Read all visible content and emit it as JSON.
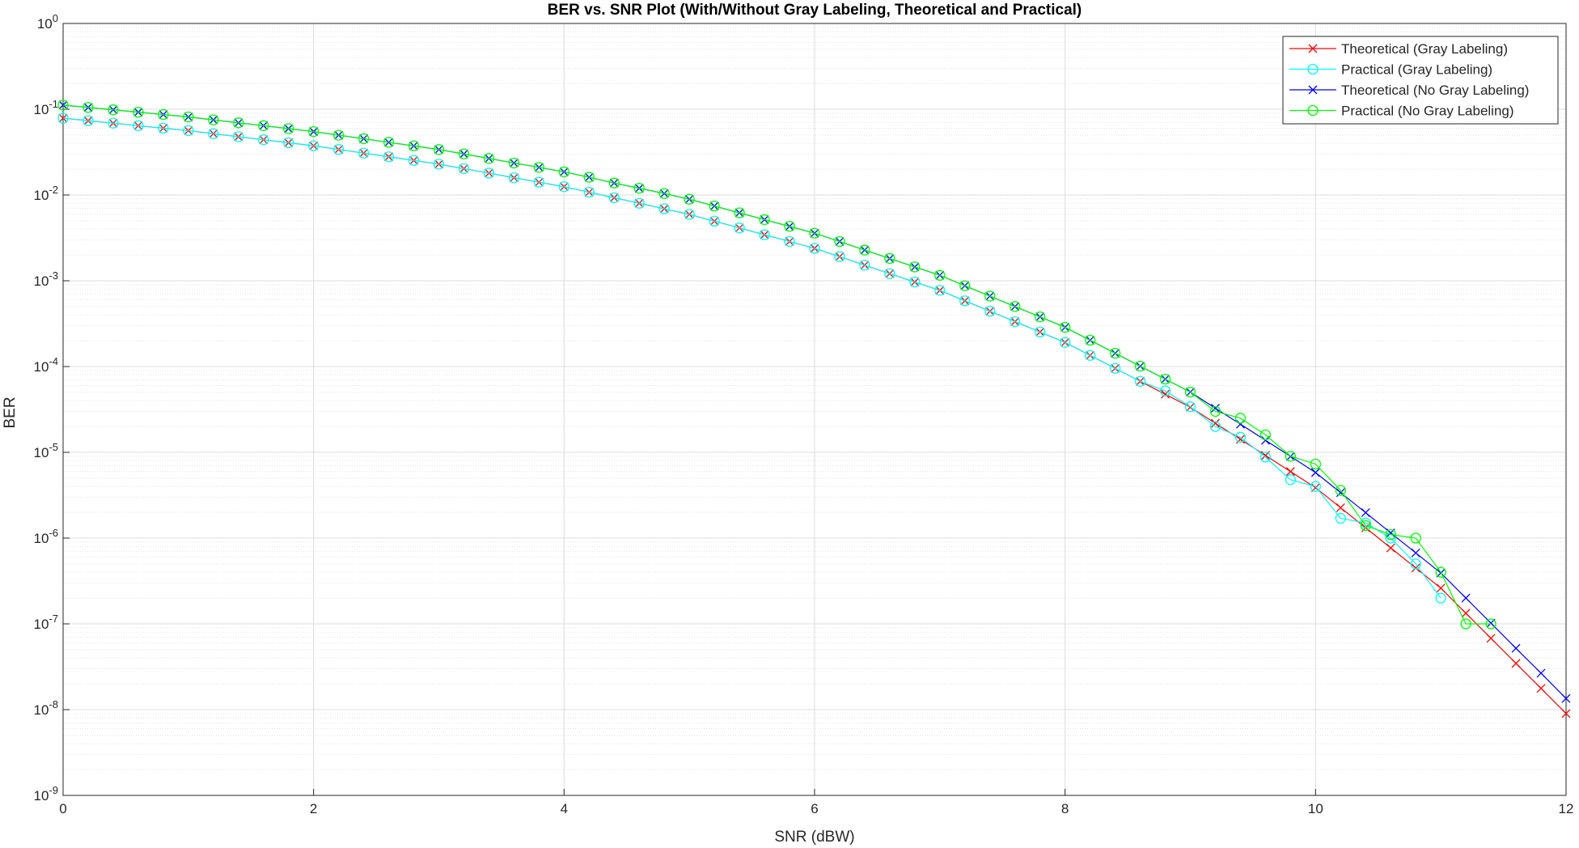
{
  "chart_data": {
    "type": "line",
    "title": "BER vs. SNR Plot (With/Without Gray Labeling, Theoretical and Practical)",
    "xlabel": "SNR (dBW)",
    "ylabel": "BER",
    "yscale": "log",
    "grid": true,
    "minor_grid": true,
    "legend": "upper right",
    "xlim": [
      0,
      12
    ],
    "xticks": [
      0,
      2,
      4,
      6,
      8,
      10,
      12
    ],
    "ylim": [
      1e-09,
      1
    ],
    "yticks": [
      {
        "value": 1e-09,
        "label": "10",
        "exponent": "-9"
      },
      {
        "value": 1e-08,
        "label": "10",
        "exponent": "-8"
      },
      {
        "value": 1e-07,
        "label": "10",
        "exponent": "-7"
      },
      {
        "value": 1e-06,
        "label": "10",
        "exponent": "-6"
      },
      {
        "value": 1e-05,
        "label": "10",
        "exponent": "-5"
      },
      {
        "value": 0.0001,
        "label": "10",
        "exponent": "-4"
      },
      {
        "value": 0.001,
        "label": "10",
        "exponent": "-3"
      },
      {
        "value": 0.01,
        "label": "10",
        "exponent": "-2"
      },
      {
        "value": 0.1,
        "label": "10",
        "exponent": "-1"
      },
      {
        "value": 1,
        "label": "10",
        "exponent": "0"
      }
    ],
    "x": [
      0,
      0.2,
      0.4,
      0.6,
      0.8,
      1,
      1.2,
      1.4,
      1.6,
      1.8,
      2,
      2.2,
      2.4,
      2.6,
      2.8,
      3,
      3.2,
      3.4,
      3.6,
      3.8,
      4,
      4.2,
      4.4,
      4.6,
      4.8,
      5,
      5.2,
      5.4,
      5.6,
      5.8,
      6,
      6.2,
      6.4,
      6.6,
      6.8,
      7,
      7.2,
      7.4,
      7.6,
      7.8,
      8,
      8.2,
      8.4,
      8.6,
      8.8,
      9,
      9.2,
      9.4,
      9.6,
      9.8,
      10,
      10.2,
      10.4,
      10.6,
      10.8,
      11,
      11.2,
      11.4,
      11.6,
      11.8,
      12
    ],
    "series": [
      {
        "name": "Theoretical (Gray Labeling)",
        "color": "#ff0000",
        "marker": "x",
        "values": [
          0.0787,
          0.0736,
          0.0688,
          0.0643,
          0.0602,
          0.0563,
          0.0519,
          0.0478,
          0.0441,
          0.0407,
          0.0375,
          0.034,
          0.0308,
          0.0279,
          0.0253,
          0.0229,
          0.0203,
          0.018,
          0.0159,
          0.0141,
          0.0125,
          0.01078,
          0.00929,
          0.00801,
          0.00691,
          0.00595,
          0.00496,
          0.00413,
          0.00344,
          0.00287,
          0.00239,
          0.00191,
          0.00152,
          0.00121,
          0.000968,
          0.000773,
          0.000584,
          0.000442,
          0.000334,
          0.000253,
          0.000191,
          0.000135,
          9.53e-05,
          6.73e-05,
          4.76e-05,
          3.36e-05,
          2.18e-05,
          1.42e-05,
          9.19e-06,
          5.97e-06,
          3.87e-06,
          2.26e-06,
          1.32e-06,
          7.68e-07,
          4.48e-07,
          2.61e-07,
          1.33e-07,
          6.79e-08,
          3.46e-08,
          1.77e-08,
          9.01e-09
        ]
      },
      {
        "name": "Practical (Gray Labeling)",
        "color": "#00ffff",
        "marker": "o",
        "values": [
          0.0787,
          0.0736,
          0.0688,
          0.0643,
          0.0602,
          0.0563,
          0.0519,
          0.0478,
          0.0441,
          0.0407,
          0.0375,
          0.034,
          0.0308,
          0.0279,
          0.0253,
          0.0229,
          0.0203,
          0.018,
          0.0159,
          0.0141,
          0.0125,
          0.01078,
          0.00929,
          0.00801,
          0.00691,
          0.00595,
          0.00496,
          0.00413,
          0.00344,
          0.00287,
          0.00239,
          0.00191,
          0.00152,
          0.00121,
          0.000968,
          0.000773,
          0.000584,
          0.000442,
          0.000334,
          0.000253,
          0.000191,
          0.000135,
          9.53e-05,
          6.73e-05,
          5.2e-05,
          3.4e-05,
          2e-05,
          1.5e-05,
          8.8e-06,
          4.8e-06,
          4e-06,
          1.7e-06,
          1.5e-06,
          1e-06,
          5e-07,
          2e-07,
          null,
          null,
          null,
          null,
          null
        ]
      },
      {
        "name": "Theoretical (No Gray Labeling)",
        "color": "#0000ff",
        "marker": "x",
        "values": [
          0.1118,
          0.105,
          0.0985,
          0.0924,
          0.0867,
          0.0813,
          0.0752,
          0.0694,
          0.0643,
          0.0594,
          0.0549,
          0.0498,
          0.0453,
          0.0411,
          0.0374,
          0.0339,
          0.0301,
          0.0267,
          0.0236,
          0.021,
          0.0186,
          0.0161,
          0.0138,
          0.012,
          0.0104,
          0.00893,
          0.00744,
          0.0062,
          0.00516,
          0.00431,
          0.00359,
          0.00287,
          0.00228,
          0.00182,
          0.00145,
          0.00116,
          0.000876,
          0.000663,
          0.000501,
          0.00038,
          0.000287,
          0.000203,
          0.000143,
          0.000101,
          7.14e-05,
          5.04e-05,
          3.27e-05,
          2.13e-05,
          1.38e-05,
          8.96e-06,
          5.81e-06,
          3.39e-06,
          1.98e-06,
          1.15e-06,
          6.72e-07,
          3.92e-07,
          2e-07,
          1.02e-07,
          5.19e-08,
          2.66e-08,
          1.35e-08
        ]
      },
      {
        "name": "Practical (No Gray Labeling)",
        "color": "#00ff00",
        "marker": "o",
        "values": [
          0.1118,
          0.105,
          0.0985,
          0.0924,
          0.0867,
          0.0813,
          0.0752,
          0.0694,
          0.0643,
          0.0594,
          0.0549,
          0.0498,
          0.0453,
          0.0411,
          0.0374,
          0.0339,
          0.0301,
          0.0267,
          0.0236,
          0.021,
          0.0186,
          0.0161,
          0.0138,
          0.012,
          0.0104,
          0.00893,
          0.00744,
          0.0062,
          0.00516,
          0.00431,
          0.00359,
          0.00287,
          0.00228,
          0.00182,
          0.00145,
          0.00116,
          0.000876,
          0.000663,
          0.000501,
          0.00038,
          0.000287,
          0.000203,
          0.000143,
          0.000101,
          7.14e-05,
          5.04e-05,
          3e-05,
          2.5e-05,
          1.6e-05,
          9e-06,
          7.3e-06,
          3.6e-06,
          1.4e-06,
          1.1e-06,
          1e-06,
          4e-07,
          1e-07,
          1e-07,
          null,
          null,
          null
        ]
      }
    ]
  }
}
